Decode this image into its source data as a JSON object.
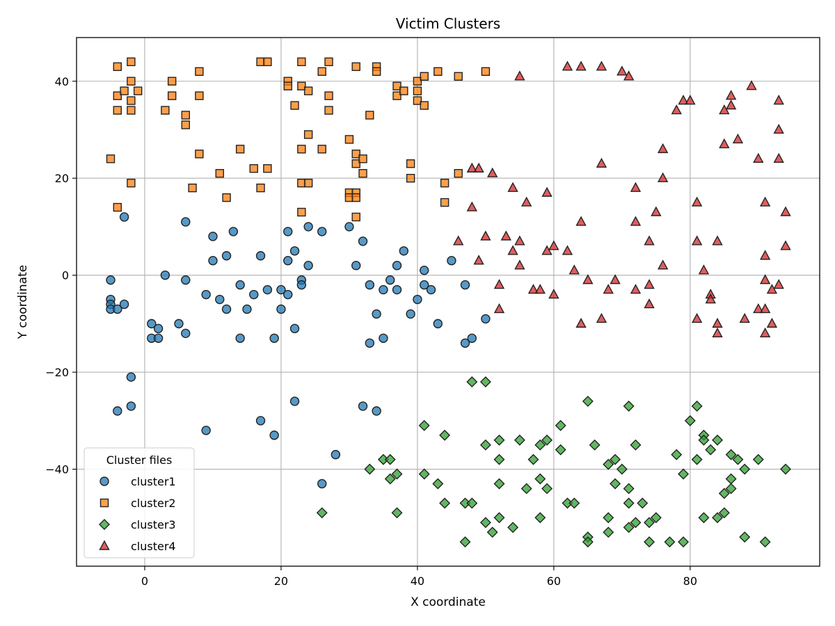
{
  "chart_data": {
    "type": "scatter",
    "title": "Victim Clusters",
    "xlabel": "X coordinate",
    "ylabel": "Y coordinate",
    "xlim": [
      -10,
      99
    ],
    "ylim": [
      -60,
      49
    ],
    "xticks": [
      0,
      20,
      40,
      60,
      80
    ],
    "yticks": [
      -40,
      -20,
      0,
      20,
      40
    ],
    "xtick_labels": [
      "0",
      "20",
      "40",
      "60",
      "80"
    ],
    "ytick_labels": [
      "−40",
      "−20",
      "0",
      "20",
      "40"
    ],
    "grid": true,
    "legend": {
      "title": "Cluster files",
      "position": "lower-left"
    },
    "series": [
      {
        "name": "cluster1",
        "marker": "circle",
        "color": "#1f77b4",
        "points": [
          [
            -5,
            -1
          ],
          [
            -5,
            -5
          ],
          [
            -5,
            -6
          ],
          [
            -5,
            -7
          ],
          [
            -4,
            -7
          ],
          [
            -3,
            -6
          ],
          [
            -3,
            12
          ],
          [
            -2,
            -21
          ],
          [
            -2,
            -27
          ],
          [
            -4,
            -28
          ],
          [
            1,
            -10
          ],
          [
            1,
            -13
          ],
          [
            2,
            -11
          ],
          [
            2,
            -13
          ],
          [
            3,
            0
          ],
          [
            5,
            -10
          ],
          [
            6,
            -12
          ],
          [
            6,
            -1
          ],
          [
            6,
            11
          ],
          [
            9,
            -4
          ],
          [
            10,
            3
          ],
          [
            10,
            8
          ],
          [
            11,
            -5
          ],
          [
            12,
            4
          ],
          [
            12,
            -7
          ],
          [
            13,
            9
          ],
          [
            14,
            -2
          ],
          [
            14,
            -13
          ],
          [
            15,
            -7
          ],
          [
            16,
            -4
          ],
          [
            17,
            4
          ],
          [
            18,
            -3
          ],
          [
            19,
            -13
          ],
          [
            20,
            -3
          ],
          [
            20,
            -7
          ],
          [
            21,
            -4
          ],
          [
            21,
            3
          ],
          [
            21,
            9
          ],
          [
            22,
            5
          ],
          [
            22,
            -11
          ],
          [
            23,
            -1
          ],
          [
            23,
            -2
          ],
          [
            24,
            2
          ],
          [
            24,
            10
          ],
          [
            26,
            9
          ],
          [
            30,
            10
          ],
          [
            31,
            2
          ],
          [
            32,
            7
          ],
          [
            33,
            -2
          ],
          [
            33,
            -14
          ],
          [
            34,
            -8
          ],
          [
            35,
            -3
          ],
          [
            35,
            -13
          ],
          [
            36,
            -1
          ],
          [
            37,
            -3
          ],
          [
            37,
            2
          ],
          [
            38,
            5
          ],
          [
            39,
            -8
          ],
          [
            40,
            -5
          ],
          [
            41,
            1
          ],
          [
            41,
            -2
          ],
          [
            42,
            -3
          ],
          [
            43,
            -10
          ],
          [
            45,
            3
          ],
          [
            47,
            -2
          ],
          [
            47,
            -14
          ],
          [
            48,
            -13
          ],
          [
            50,
            -9
          ],
          [
            9,
            -32
          ],
          [
            17,
            -30
          ],
          [
            19,
            -33
          ],
          [
            22,
            -26
          ],
          [
            28,
            -37
          ],
          [
            26,
            -43
          ],
          [
            32,
            -27
          ],
          [
            34,
            -28
          ]
        ]
      },
      {
        "name": "cluster2",
        "marker": "square",
        "color": "#ff7f0e",
        "points": [
          [
            -5,
            24
          ],
          [
            -4,
            14
          ],
          [
            -4,
            34
          ],
          [
            -4,
            37
          ],
          [
            -4,
            43
          ],
          [
            -3,
            38
          ],
          [
            -2,
            44
          ],
          [
            -2,
            40
          ],
          [
            -2,
            36
          ],
          [
            -2,
            34
          ],
          [
            -2,
            19
          ],
          [
            -1,
            38
          ],
          [
            3,
            34
          ],
          [
            4,
            37
          ],
          [
            4,
            40
          ],
          [
            6,
            33
          ],
          [
            6,
            31
          ],
          [
            7,
            18
          ],
          [
            8,
            25
          ],
          [
            8,
            37
          ],
          [
            8,
            42
          ],
          [
            11,
            21
          ],
          [
            12,
            16
          ],
          [
            14,
            26
          ],
          [
            16,
            22
          ],
          [
            17,
            18
          ],
          [
            17,
            44
          ],
          [
            18,
            44
          ],
          [
            18,
            22
          ],
          [
            21,
            40
          ],
          [
            21,
            39
          ],
          [
            22,
            35
          ],
          [
            23,
            44
          ],
          [
            23,
            39
          ],
          [
            23,
            26
          ],
          [
            23,
            19
          ],
          [
            23,
            13
          ],
          [
            24,
            38
          ],
          [
            24,
            29
          ],
          [
            24,
            19
          ],
          [
            26,
            26
          ],
          [
            26,
            42
          ],
          [
            27,
            44
          ],
          [
            27,
            37
          ],
          [
            27,
            34
          ],
          [
            30,
            28
          ],
          [
            30,
            17
          ],
          [
            30,
            16
          ],
          [
            31,
            43
          ],
          [
            31,
            25
          ],
          [
            31,
            23
          ],
          [
            31,
            17
          ],
          [
            31,
            16
          ],
          [
            31,
            12
          ],
          [
            32,
            24
          ],
          [
            32,
            21
          ],
          [
            33,
            33
          ],
          [
            34,
            43
          ],
          [
            34,
            42
          ],
          [
            37,
            39
          ],
          [
            37,
            37
          ],
          [
            38,
            38
          ],
          [
            39,
            23
          ],
          [
            39,
            20
          ],
          [
            40,
            40
          ],
          [
            40,
            38
          ],
          [
            40,
            36
          ],
          [
            41,
            41
          ],
          [
            41,
            35
          ],
          [
            43,
            42
          ],
          [
            44,
            19
          ],
          [
            44,
            15
          ],
          [
            46,
            41
          ],
          [
            46,
            21
          ],
          [
            50,
            42
          ]
        ]
      },
      {
        "name": "cluster3",
        "marker": "diamond",
        "color": "#2ca02c",
        "points": [
          [
            26,
            -49
          ],
          [
            33,
            -40
          ],
          [
            35,
            -38
          ],
          [
            36,
            -38
          ],
          [
            36,
            -42
          ],
          [
            37,
            -41
          ],
          [
            37,
            -49
          ],
          [
            41,
            -31
          ],
          [
            41,
            -41
          ],
          [
            43,
            -43
          ],
          [
            44,
            -33
          ],
          [
            44,
            -47
          ],
          [
            47,
            -47
          ],
          [
            47,
            -55
          ],
          [
            48,
            -47
          ],
          [
            48,
            -22
          ],
          [
            50,
            -22
          ],
          [
            50,
            -35
          ],
          [
            50,
            -51
          ],
          [
            51,
            -53
          ],
          [
            52,
            -34
          ],
          [
            52,
            -38
          ],
          [
            52,
            -43
          ],
          [
            52,
            -50
          ],
          [
            54,
            -52
          ],
          [
            55,
            -34
          ],
          [
            56,
            -44
          ],
          [
            57,
            -38
          ],
          [
            58,
            -35
          ],
          [
            58,
            -42
          ],
          [
            58,
            -50
          ],
          [
            59,
            -34
          ],
          [
            59,
            -44
          ],
          [
            61,
            -31
          ],
          [
            61,
            -36
          ],
          [
            62,
            -47
          ],
          [
            63,
            -47
          ],
          [
            65,
            -26
          ],
          [
            65,
            -54
          ],
          [
            65,
            -55
          ],
          [
            66,
            -35
          ],
          [
            68,
            -39
          ],
          [
            68,
            -50
          ],
          [
            68,
            -53
          ],
          [
            69,
            -38
          ],
          [
            69,
            -43
          ],
          [
            70,
            -40
          ],
          [
            71,
            -27
          ],
          [
            71,
            -44
          ],
          [
            71,
            -47
          ],
          [
            71,
            -52
          ],
          [
            72,
            -35
          ],
          [
            72,
            -51
          ],
          [
            73,
            -47
          ],
          [
            74,
            -51
          ],
          [
            74,
            -55
          ],
          [
            75,
            -50
          ],
          [
            77,
            -55
          ],
          [
            78,
            -37
          ],
          [
            79,
            -41
          ],
          [
            79,
            -55
          ],
          [
            80,
            -30
          ],
          [
            81,
            -27
          ],
          [
            81,
            -38
          ],
          [
            82,
            -33
          ],
          [
            82,
            -34
          ],
          [
            82,
            -50
          ],
          [
            83,
            -36
          ],
          [
            84,
            -34
          ],
          [
            84,
            -50
          ],
          [
            85,
            -45
          ],
          [
            85,
            -49
          ],
          [
            86,
            -44
          ],
          [
            86,
            -42
          ],
          [
            86,
            -37
          ],
          [
            87,
            -38
          ],
          [
            88,
            -40
          ],
          [
            88,
            -54
          ],
          [
            90,
            -38
          ],
          [
            91,
            -55
          ],
          [
            94,
            -40
          ]
        ]
      },
      {
        "name": "cluster4",
        "marker": "triangle",
        "color": "#d62728",
        "points": [
          [
            46,
            7
          ],
          [
            48,
            14
          ],
          [
            48,
            22
          ],
          [
            49,
            22
          ],
          [
            49,
            3
          ],
          [
            50,
            8
          ],
          [
            51,
            21
          ],
          [
            52,
            -2
          ],
          [
            52,
            -7
          ],
          [
            53,
            8
          ],
          [
            54,
            18
          ],
          [
            54,
            5
          ],
          [
            55,
            7
          ],
          [
            55,
            2
          ],
          [
            55,
            41
          ],
          [
            56,
            15
          ],
          [
            57,
            -3
          ],
          [
            58,
            -3
          ],
          [
            59,
            17
          ],
          [
            59,
            5
          ],
          [
            60,
            6
          ],
          [
            60,
            -4
          ],
          [
            62,
            43
          ],
          [
            62,
            5
          ],
          [
            63,
            1
          ],
          [
            64,
            43
          ],
          [
            64,
            11
          ],
          [
            64,
            -10
          ],
          [
            65,
            -1
          ],
          [
            67,
            43
          ],
          [
            67,
            23
          ],
          [
            67,
            -9
          ],
          [
            68,
            -3
          ],
          [
            69,
            -1
          ],
          [
            70,
            42
          ],
          [
            71,
            41
          ],
          [
            72,
            18
          ],
          [
            72,
            11
          ],
          [
            72,
            -3
          ],
          [
            74,
            7
          ],
          [
            74,
            -2
          ],
          [
            74,
            -6
          ],
          [
            75,
            13
          ],
          [
            76,
            26
          ],
          [
            76,
            20
          ],
          [
            76,
            2
          ],
          [
            78,
            34
          ],
          [
            79,
            36
          ],
          [
            80,
            36
          ],
          [
            81,
            15
          ],
          [
            81,
            7
          ],
          [
            81,
            -9
          ],
          [
            82,
            1
          ],
          [
            83,
            -4
          ],
          [
            83,
            -5
          ],
          [
            84,
            7
          ],
          [
            84,
            -10
          ],
          [
            84,
            -12
          ],
          [
            85,
            34
          ],
          [
            85,
            27
          ],
          [
            86,
            37
          ],
          [
            86,
            35
          ],
          [
            87,
            28
          ],
          [
            88,
            -9
          ],
          [
            89,
            39
          ],
          [
            90,
            24
          ],
          [
            90,
            -7
          ],
          [
            91,
            15
          ],
          [
            91,
            4
          ],
          [
            91,
            -1
          ],
          [
            91,
            -7
          ],
          [
            91,
            -12
          ],
          [
            92,
            -3
          ],
          [
            92,
            -10
          ],
          [
            93,
            36
          ],
          [
            93,
            30
          ],
          [
            93,
            24
          ],
          [
            93,
            -2
          ],
          [
            94,
            13
          ],
          [
            94,
            6
          ]
        ]
      }
    ]
  }
}
